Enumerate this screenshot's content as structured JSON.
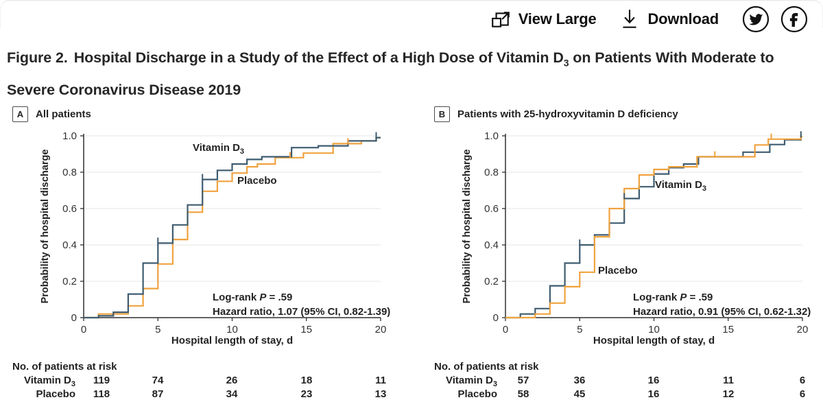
{
  "toolbar": {
    "view_large_label": "View Large",
    "download_label": "Download",
    "icon_names": [
      "expand-icon",
      "download-icon",
      "twitter-icon",
      "facebook-icon"
    ]
  },
  "figure_title": {
    "prefix": "Figure 2.",
    "before_sub": "Hospital Discharge in a Study of the Effect of a High Dose of Vitamin D",
    "sub": "3",
    "after_sub": " on Patients With Moderate to Severe Coronavirus Disease 2019"
  },
  "palette": {
    "vitamin_d3": "#3E5C70",
    "placebo": "#F0A23E",
    "grid": "#EAEAEA",
    "axis": "#2F2F2F",
    "text": "#222222"
  },
  "chart_data": [
    {
      "type": "line",
      "subtype": "kaplan-meier-step",
      "panel_letter": "A",
      "panel_title": "All patients",
      "xlabel": "Hospital length of stay, d",
      "ylabel": "Probability of hospital discharge",
      "xlim": [
        0,
        20
      ],
      "ylim": [
        0,
        1
      ],
      "xticks": [
        0,
        5,
        10,
        15,
        20
      ],
      "xtick_labels": [
        "0",
        "5",
        "10",
        "15",
        "20"
      ],
      "yticks": [
        0,
        0.2,
        0.4,
        0.6,
        0.8,
        1.0
      ],
      "ytick_labels": [
        "0",
        "0.2",
        "0.4",
        "0.6",
        "0.8",
        "1.0"
      ],
      "grid": true,
      "grid_color": "#EAEAEA",
      "axis_color": "#2F2F2F",
      "legend_position": "inline-curve-labels",
      "z_order": [
        1,
        0
      ],
      "series": [
        {
          "name": "Vitamin D3",
          "label_main": "Vitamin D",
          "label_sub": "3",
          "color": "#3E5C70",
          "steps": [
            [
              1,
              0.01
            ],
            [
              2,
              0.03
            ],
            [
              3,
              0.13
            ],
            [
              4,
              0.3
            ],
            [
              5,
              0.41
            ],
            [
              6,
              0.51
            ],
            [
              7,
              0.62
            ],
            [
              8,
              0.76
            ],
            [
              9,
              0.81
            ],
            [
              10,
              0.845
            ],
            [
              11,
              0.87
            ],
            [
              12,
              0.885
            ],
            [
              14,
              0.935
            ],
            [
              15.8,
              0.945
            ],
            [
              17.8,
              0.972
            ],
            [
              19.7,
              0.99
            ]
          ],
          "censor_ticks": [
            [
              5,
              0.41
            ],
            [
              8,
              0.76
            ],
            [
              19.7,
              0.99
            ]
          ]
        },
        {
          "name": "Placebo",
          "label_main": "Placebo",
          "label_sub": "",
          "color": "#F0A23E",
          "steps": [
            [
              1,
              0.02
            ],
            [
              3,
              0.065
            ],
            [
              4,
              0.16
            ],
            [
              5,
              0.295
            ],
            [
              6,
              0.43
            ],
            [
              7,
              0.58
            ],
            [
              8,
              0.695
            ],
            [
              9,
              0.75
            ],
            [
              10,
              0.795
            ],
            [
              11,
              0.83
            ],
            [
              11.7,
              0.845
            ],
            [
              12.9,
              0.88
            ],
            [
              14.8,
              0.905
            ],
            [
              16.8,
              0.957
            ],
            [
              18.7,
              0.972
            ],
            [
              19.7,
              0.99
            ]
          ],
          "censor_ticks": [
            [
              13.9,
              0.88
            ],
            [
              17.8,
              0.957
            ]
          ]
        }
      ],
      "annotation": {
        "line1_pre": "Log-rank ",
        "line1_italic": "P",
        "line1_post": " = .59",
        "line2": "Hazard ratio, 1.07 (95% CI, 0.82-1.39)"
      },
      "risk_table": {
        "header": "No. of patients at risk",
        "times": [
          0,
          5,
          10,
          15,
          20
        ],
        "rows": [
          {
            "label_main": "Vitamin D",
            "label_sub": "3",
            "counts": [
              "119",
              "74",
              "26",
              "18",
              "11"
            ]
          },
          {
            "label_main": "Placebo",
            "label_sub": "",
            "counts": [
              "118",
              "87",
              "34",
              "23",
              "13"
            ]
          }
        ]
      }
    },
    {
      "type": "line",
      "subtype": "kaplan-meier-step",
      "panel_letter": "B",
      "panel_title": "Patients with 25-hydroxyvitamin D deficiency",
      "xlabel": "Hospital length of stay, d",
      "ylabel": "Probability of hospital discharge",
      "xlim": [
        0,
        20
      ],
      "ylim": [
        0,
        1
      ],
      "xticks": [
        0,
        5,
        10,
        15,
        20
      ],
      "xtick_labels": [
        "0",
        "5",
        "10",
        "15",
        "20"
      ],
      "yticks": [
        0,
        0.2,
        0.4,
        0.6,
        0.8,
        1.0
      ],
      "ytick_labels": [
        "0",
        "0.2",
        "0.4",
        "0.6",
        "0.8",
        "1.0"
      ],
      "grid": true,
      "grid_color": "#EAEAEA",
      "axis_color": "#2F2F2F",
      "legend_position": "inline-curve-labels",
      "z_order": [
        0,
        1
      ],
      "series": [
        {
          "name": "Vitamin D3",
          "label_main": "Vitamin D",
          "label_sub": "3",
          "color": "#3E5C70",
          "steps": [
            [
              1,
              0.02
            ],
            [
              2,
              0.05
            ],
            [
              3,
              0.175
            ],
            [
              4,
              0.3
            ],
            [
              5,
              0.4
            ],
            [
              6,
              0.455
            ],
            [
              7,
              0.52
            ],
            [
              8,
              0.655
            ],
            [
              9,
              0.72
            ],
            [
              10,
              0.79
            ],
            [
              11,
              0.825
            ],
            [
              12,
              0.845
            ],
            [
              13,
              0.885
            ],
            [
              16,
              0.91
            ],
            [
              17.8,
              0.952
            ],
            [
              18.8,
              0.978
            ],
            [
              19.9,
              0.995
            ]
          ],
          "censor_ticks": [
            [
              5,
              0.4
            ],
            [
              8,
              0.655
            ],
            [
              19.9,
              0.995
            ]
          ]
        },
        {
          "name": "Placebo",
          "label_main": "Placebo",
          "label_sub": "",
          "color": "#F0A23E",
          "steps": [
            [
              2,
              0.02
            ],
            [
              3,
              0.08
            ],
            [
              4,
              0.17
            ],
            [
              5,
              0.25
            ],
            [
              6,
              0.445
            ],
            [
              7,
              0.6
            ],
            [
              8,
              0.71
            ],
            [
              9,
              0.785
            ],
            [
              10,
              0.815
            ],
            [
              11,
              0.83
            ],
            [
              12.9,
              0.885
            ],
            [
              16.8,
              0.95
            ],
            [
              17.7,
              0.982
            ],
            [
              19.9,
              0.995
            ]
          ],
          "censor_ticks": [
            [
              14.1,
              0.885
            ],
            [
              17.9,
              0.982
            ]
          ]
        }
      ],
      "annotation": {
        "line1_pre": "Log-rank ",
        "line1_italic": "P",
        "line1_post": " = .59",
        "line2": "Hazard ratio, 0.91 (95% CI, 0.62-1.32)"
      },
      "risk_table": {
        "header": "No. of patients at risk",
        "times": [
          0,
          5,
          10,
          15,
          20
        ],
        "rows": [
          {
            "label_main": "Vitamin D",
            "label_sub": "3",
            "counts": [
              "57",
              "36",
              "16",
              "11",
              "6"
            ]
          },
          {
            "label_main": "Placebo",
            "label_sub": "",
            "counts": [
              "58",
              "45",
              "16",
              "12",
              "6"
            ]
          }
        ]
      }
    }
  ]
}
